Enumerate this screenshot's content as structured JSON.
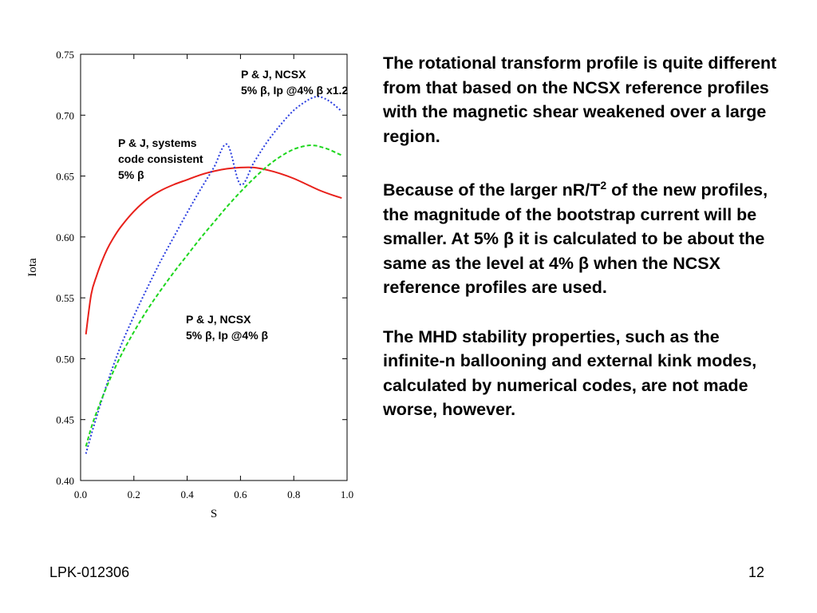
{
  "slide": {
    "paragraphs": [
      "The rotational transform profile is quite different from that based on the NCSX reference profiles with the magnetic shear weakened over a large region.",
      {
        "before": "Because of the larger nR/T",
        "sup": "2",
        "after": " of the new profiles, the magnitude of the bootstrap current will be smaller. At 5% β it is calculated to be about the same as the level at 4% β when the NCSX reference profiles are used."
      },
      "The MHD stability properties, such as the infinite-n ballooning and external kink modes, calculated by numerical codes, are not made worse, however."
    ],
    "footer_left": "LPK-012306",
    "page_number": "12"
  },
  "chart_data": {
    "type": "line",
    "xlabel": "S",
    "ylabel": "Iota",
    "xlim": [
      0.0,
      1.0
    ],
    "ylim": [
      0.4,
      0.75
    ],
    "x_ticks": [
      "0.0",
      "0.2",
      "0.4",
      "0.6",
      "0.8",
      "1.0"
    ],
    "y_ticks": [
      "0.40",
      "0.45",
      "0.50",
      "0.55",
      "0.60",
      "0.65",
      "0.70",
      "0.75"
    ],
    "grid": false,
    "series": [
      {
        "color": "#e8201a",
        "dash": "solid",
        "x": [
          0.02,
          0.04,
          0.06,
          0.08,
          0.1,
          0.12,
          0.15,
          0.2,
          0.25,
          0.3,
          0.35,
          0.4,
          0.45,
          0.5,
          0.55,
          0.6,
          0.65,
          0.7,
          0.75,
          0.8,
          0.85,
          0.9,
          0.95,
          0.98
        ],
        "y": [
          0.52,
          0.553,
          0.568,
          0.58,
          0.59,
          0.598,
          0.608,
          0.621,
          0.631,
          0.638,
          0.643,
          0.647,
          0.651,
          0.654,
          0.656,
          0.657,
          0.657,
          0.655,
          0.652,
          0.648,
          0.643,
          0.638,
          0.634,
          0.632
        ]
      },
      {
        "color": "#2a3ee0",
        "dash": "dotted",
        "x": [
          0.02,
          0.05,
          0.1,
          0.15,
          0.2,
          0.25,
          0.3,
          0.35,
          0.4,
          0.45,
          0.5,
          0.55,
          0.6,
          0.65,
          0.7,
          0.75,
          0.8,
          0.85,
          0.88,
          0.9,
          0.93,
          0.96,
          0.98
        ],
        "y": [
          0.422,
          0.445,
          0.48,
          0.51,
          0.535,
          0.558,
          0.58,
          0.6,
          0.62,
          0.639,
          0.657,
          0.676,
          0.643,
          0.661,
          0.678,
          0.692,
          0.704,
          0.712,
          0.715,
          0.715,
          0.712,
          0.707,
          0.703
        ]
      },
      {
        "color": "#1dd61d",
        "dash": "dashed",
        "x": [
          0.02,
          0.05,
          0.1,
          0.15,
          0.2,
          0.25,
          0.3,
          0.35,
          0.4,
          0.45,
          0.5,
          0.55,
          0.6,
          0.65,
          0.7,
          0.75,
          0.8,
          0.85,
          0.88,
          0.9,
          0.93,
          0.96,
          0.98
        ],
        "y": [
          0.428,
          0.45,
          0.478,
          0.502,
          0.522,
          0.54,
          0.556,
          0.571,
          0.585,
          0.599,
          0.612,
          0.625,
          0.637,
          0.648,
          0.658,
          0.666,
          0.672,
          0.675,
          0.675,
          0.674,
          0.672,
          0.669,
          0.667
        ]
      }
    ],
    "annotations": [
      {
        "lines": [
          "P & J, NCSX",
          "5% β, Ip @4% β x1.2"
        ]
      },
      {
        "lines": [
          "P & J, systems",
          "code consistent",
          "5% β"
        ]
      },
      {
        "lines": [
          "P & J, NCSX",
          "5% β, Ip @4% β"
        ]
      }
    ]
  }
}
